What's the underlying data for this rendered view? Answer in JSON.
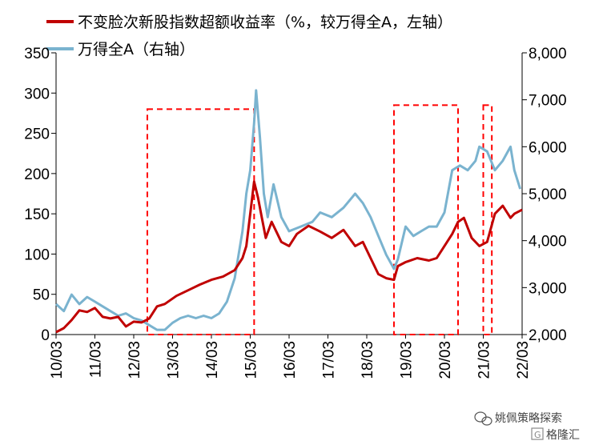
{
  "chart_data": {
    "type": "line",
    "legend": [
      {
        "label": "不变脸次新股指数超额收益率（%，较万得全A，左轴）",
        "color": "#c00000",
        "axis": "left"
      },
      {
        "label": "万得全A（右轴）",
        "color": "#7ab3cf",
        "axis": "right"
      }
    ],
    "left_axis": {
      "min": 0,
      "max": 350,
      "ticks": [
        "0",
        "50",
        "100",
        "150",
        "200",
        "250",
        "300",
        "350"
      ]
    },
    "right_axis": {
      "min": 2000,
      "max": 8000,
      "ticks": [
        "2,000",
        "3,000",
        "4,000",
        "5,000",
        "6,000",
        "7,000",
        "8,000"
      ]
    },
    "x_ticks": [
      "10/03",
      "11/03",
      "12/03",
      "13/03",
      "14/03",
      "15/03",
      "16/03",
      "17/03",
      "18/03",
      "19/03",
      "20/03",
      "21/03",
      "22/03"
    ],
    "series": [
      {
        "name": "不变脸次新股指数超额收益率（%，较万得全A，左轴）",
        "axis": "left",
        "x": [
          2010.2,
          2010.4,
          2010.6,
          2010.8,
          2011.0,
          2011.2,
          2011.4,
          2011.6,
          2011.8,
          2012.0,
          2012.2,
          2012.4,
          2012.6,
          2012.8,
          2013.0,
          2013.3,
          2013.6,
          2013.9,
          2014.2,
          2014.5,
          2014.8,
          2015.0,
          2015.1,
          2015.2,
          2015.3,
          2015.4,
          2015.5,
          2015.6,
          2015.75,
          2015.9,
          2016.0,
          2016.2,
          2016.4,
          2016.7,
          2017.0,
          2017.3,
          2017.6,
          2017.9,
          2018.1,
          2018.3,
          2018.5,
          2018.7,
          2018.9,
          2019.0,
          2019.2,
          2019.5,
          2019.8,
          2020.0,
          2020.2,
          2020.4,
          2020.55,
          2020.7,
          2020.9,
          2021.1,
          2021.3,
          2021.5,
          2021.7,
          2021.9,
          2022.0,
          2022.2
        ],
        "y": [
          3,
          8,
          18,
          30,
          28,
          33,
          22,
          20,
          22,
          10,
          16,
          15,
          20,
          35,
          38,
          48,
          55,
          62,
          68,
          72,
          80,
          95,
          110,
          150,
          190,
          170,
          145,
          120,
          140,
          125,
          115,
          110,
          125,
          135,
          128,
          120,
          130,
          110,
          115,
          95,
          75,
          70,
          68,
          85,
          90,
          95,
          92,
          95,
          110,
          125,
          140,
          145,
          120,
          110,
          115,
          150,
          160,
          145,
          150,
          155
        ]
      },
      {
        "name": "万得全A（右轴）",
        "axis": "right",
        "x": [
          2010.2,
          2010.4,
          2010.6,
          2010.8,
          2011.0,
          2011.2,
          2011.4,
          2011.6,
          2011.8,
          2012.0,
          2012.2,
          2012.4,
          2012.6,
          2012.8,
          2013.0,
          2013.2,
          2013.4,
          2013.6,
          2013.8,
          2014.0,
          2014.2,
          2014.4,
          2014.6,
          2014.8,
          2015.0,
          2015.1,
          2015.2,
          2015.3,
          2015.35,
          2015.45,
          2015.55,
          2015.65,
          2015.8,
          2016.0,
          2016.2,
          2016.5,
          2016.8,
          2017.0,
          2017.3,
          2017.6,
          2017.9,
          2018.1,
          2018.3,
          2018.5,
          2018.7,
          2018.9,
          2019.0,
          2019.2,
          2019.4,
          2019.6,
          2019.8,
          2020.0,
          2020.2,
          2020.4,
          2020.6,
          2020.8,
          2021.0,
          2021.1,
          2021.3,
          2021.5,
          2021.7,
          2021.9,
          2022.0,
          2022.15
        ],
        "y": [
          2650,
          2500,
          2850,
          2650,
          2800,
          2700,
          2600,
          2500,
          2400,
          2450,
          2350,
          2300,
          2200,
          2100,
          2100,
          2250,
          2350,
          2400,
          2350,
          2400,
          2350,
          2450,
          2700,
          3200,
          4200,
          5000,
          5500,
          6500,
          7200,
          6200,
          5000,
          4500,
          5200,
          4500,
          4200,
          4300,
          4400,
          4600,
          4500,
          4700,
          5000,
          4800,
          4500,
          4100,
          3700,
          3400,
          3600,
          4300,
          4100,
          4200,
          4300,
          4300,
          4600,
          5500,
          5600,
          5500,
          5700,
          6000,
          5900,
          5500,
          5700,
          6000,
          5500,
          5100
        ]
      }
    ],
    "highlight_boxes": [
      {
        "x_start": 2012.55,
        "x_end": 2015.3,
        "y_top": 280
      },
      {
        "x_start": 2018.9,
        "x_end": 2020.55,
        "y_top": 285
      },
      {
        "x_start": 2021.2,
        "x_end": 2021.42,
        "y_top": 285
      }
    ]
  },
  "watermark": {
    "account": "姚佩策略探索",
    "brand": "格隆汇"
  }
}
